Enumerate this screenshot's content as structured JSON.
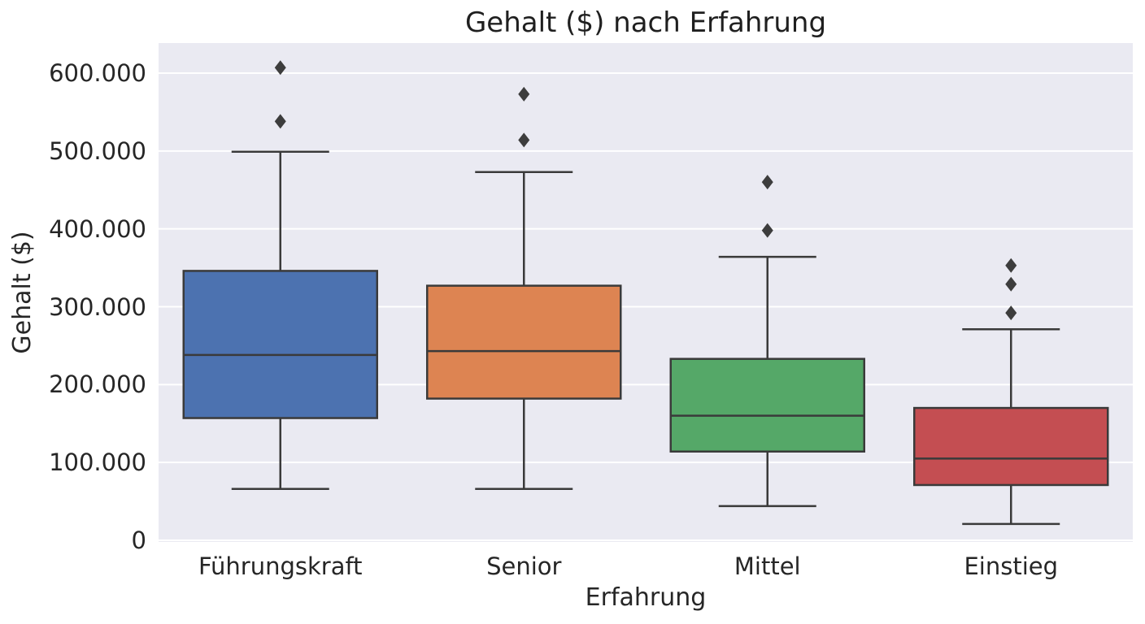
{
  "chart_data": {
    "type": "box",
    "title": "Gehalt ($) nach Erfahrung",
    "xlabel": "Erfahrung",
    "ylabel": "Gehalt ($)",
    "ylim": [
      -3000,
      640000
    ],
    "yticks": [
      0,
      100000,
      200000,
      300000,
      400000,
      500000,
      600000
    ],
    "ytick_labels": [
      "0",
      "100.000",
      "200.000",
      "300.000",
      "400.000",
      "500.000",
      "600.000"
    ],
    "grid": true,
    "categories": [
      "Führungskraft",
      "Senior",
      "Mittel",
      "Einstieg"
    ],
    "series": [
      {
        "name": "Führungskraft",
        "color": "#4c72b0",
        "whisker_low": 66000,
        "q1": 157000,
        "median": 238000,
        "q3": 346000,
        "whisker_high": 499000,
        "outliers": [
          538000,
          607000
        ]
      },
      {
        "name": "Senior",
        "color": "#dd8452",
        "whisker_low": 66000,
        "q1": 182000,
        "median": 243000,
        "q3": 327000,
        "whisker_high": 473000,
        "outliers": [
          514000,
          573000
        ]
      },
      {
        "name": "Mittel",
        "color": "#55a868",
        "whisker_low": 44000,
        "q1": 114000,
        "median": 160000,
        "q3": 233000,
        "whisker_high": 364000,
        "outliers": [
          398000,
          460000
        ]
      },
      {
        "name": "Einstieg",
        "color": "#c44e52",
        "whisker_low": 21000,
        "q1": 71000,
        "median": 105000,
        "q3": 170000,
        "whisker_high": 271000,
        "outliers": [
          292000,
          329000,
          353000
        ]
      }
    ],
    "style": {
      "background": "#eaeaf2",
      "gridline": "#ffffff",
      "edge": "#3a3a3a",
      "flier": "#3d3d3d"
    }
  }
}
